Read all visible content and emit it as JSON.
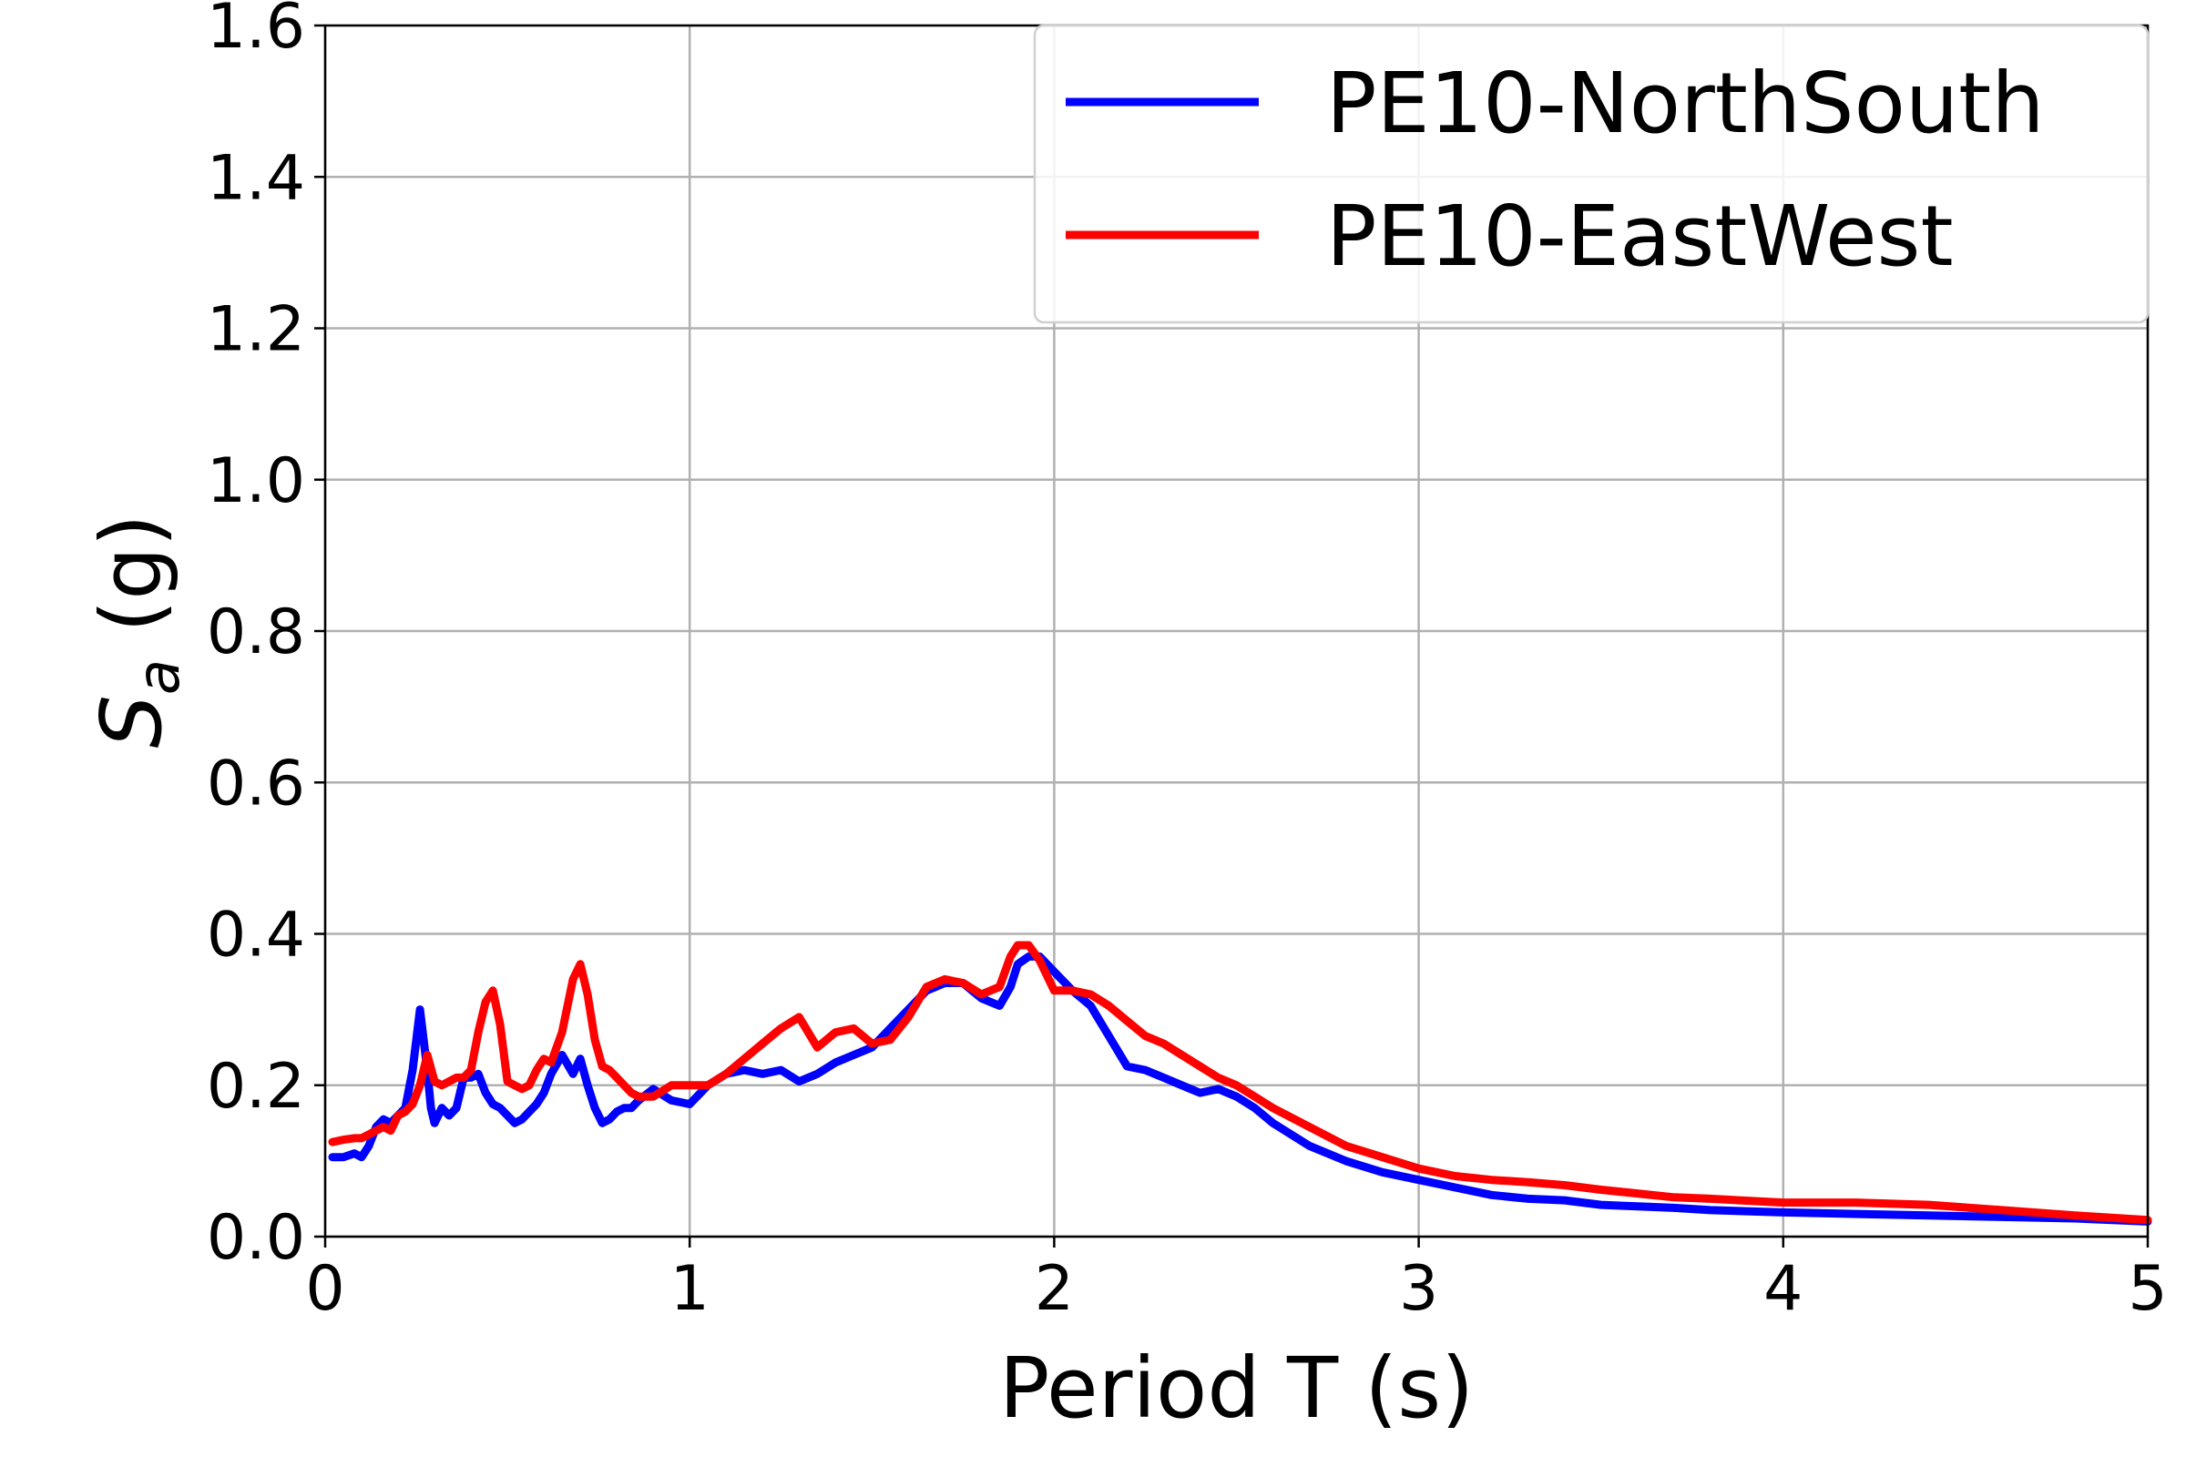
{
  "chart_data": {
    "type": "line",
    "title": "",
    "xlabel": "Period T (s)",
    "ylabel": {
      "base": "S",
      "subscript": "a",
      "suffix": " (g)"
    },
    "xlim": [
      0,
      5
    ],
    "ylim": [
      0,
      1.6
    ],
    "xticks": [
      0,
      1,
      2,
      3,
      4,
      5
    ],
    "xtick_labels": [
      "0",
      "1",
      "2",
      "3",
      "4",
      "5"
    ],
    "yticks": [
      0,
      0.2,
      0.4,
      0.6,
      0.8,
      1.0,
      1.2,
      1.4,
      1.6
    ],
    "ytick_labels": [
      "0.0",
      "0.2",
      "0.4",
      "0.6",
      "0.8",
      "1.0",
      "1.2",
      "1.4",
      "1.6"
    ],
    "grid": true,
    "legend_position": "top-right",
    "series": [
      {
        "name": "PE10-NorthSouth",
        "color": "#0000ff",
        "x": [
          0.02,
          0.05,
          0.08,
          0.1,
          0.12,
          0.14,
          0.16,
          0.18,
          0.2,
          0.22,
          0.24,
          0.26,
          0.28,
          0.29,
          0.3,
          0.32,
          0.34,
          0.36,
          0.38,
          0.4,
          0.42,
          0.44,
          0.46,
          0.48,
          0.5,
          0.52,
          0.54,
          0.56,
          0.58,
          0.6,
          0.62,
          0.65,
          0.68,
          0.7,
          0.72,
          0.74,
          0.76,
          0.78,
          0.8,
          0.82,
          0.84,
          0.86,
          0.9,
          0.95,
          1.0,
          1.05,
          1.1,
          1.15,
          1.2,
          1.25,
          1.3,
          1.35,
          1.4,
          1.45,
          1.5,
          1.55,
          1.6,
          1.65,
          1.7,
          1.75,
          1.8,
          1.85,
          1.88,
          1.9,
          1.93,
          1.96,
          2.0,
          2.05,
          2.1,
          2.15,
          2.2,
          2.25,
          2.3,
          2.35,
          2.4,
          2.45,
          2.5,
          2.55,
          2.6,
          2.7,
          2.8,
          2.9,
          3.0,
          3.1,
          3.2,
          3.3,
          3.4,
          3.5,
          3.6,
          3.7,
          3.8,
          4.0,
          4.2,
          4.4,
          4.6,
          4.8,
          5.0
        ],
        "values": [
          0.105,
          0.105,
          0.11,
          0.105,
          0.12,
          0.145,
          0.155,
          0.15,
          0.16,
          0.17,
          0.22,
          0.3,
          0.22,
          0.17,
          0.15,
          0.17,
          0.16,
          0.17,
          0.21,
          0.21,
          0.215,
          0.19,
          0.175,
          0.17,
          0.16,
          0.15,
          0.155,
          0.165,
          0.175,
          0.19,
          0.215,
          0.24,
          0.215,
          0.235,
          0.2,
          0.17,
          0.15,
          0.155,
          0.165,
          0.17,
          0.17,
          0.18,
          0.195,
          0.18,
          0.175,
          0.2,
          0.215,
          0.22,
          0.215,
          0.22,
          0.205,
          0.215,
          0.23,
          0.24,
          0.25,
          0.275,
          0.3,
          0.325,
          0.335,
          0.335,
          0.315,
          0.305,
          0.33,
          0.36,
          0.37,
          0.37,
          0.35,
          0.325,
          0.305,
          0.265,
          0.225,
          0.22,
          0.21,
          0.2,
          0.19,
          0.195,
          0.185,
          0.17,
          0.15,
          0.12,
          0.1,
          0.085,
          0.075,
          0.065,
          0.055,
          0.05,
          0.048,
          0.042,
          0.04,
          0.038,
          0.035,
          0.032,
          0.03,
          0.028,
          0.026,
          0.024,
          0.02
        ]
      },
      {
        "name": "PE10-EastWest",
        "color": "#ff0000",
        "x": [
          0.02,
          0.05,
          0.08,
          0.1,
          0.12,
          0.14,
          0.16,
          0.18,
          0.2,
          0.22,
          0.24,
          0.26,
          0.28,
          0.3,
          0.32,
          0.34,
          0.36,
          0.38,
          0.4,
          0.42,
          0.44,
          0.46,
          0.48,
          0.5,
          0.52,
          0.54,
          0.56,
          0.58,
          0.6,
          0.62,
          0.65,
          0.68,
          0.7,
          0.72,
          0.74,
          0.76,
          0.78,
          0.8,
          0.82,
          0.84,
          0.86,
          0.9,
          0.95,
          1.0,
          1.05,
          1.1,
          1.15,
          1.2,
          1.25,
          1.3,
          1.35,
          1.4,
          1.45,
          1.5,
          1.55,
          1.6,
          1.65,
          1.7,
          1.75,
          1.8,
          1.85,
          1.88,
          1.9,
          1.93,
          1.96,
          2.0,
          2.05,
          2.1,
          2.15,
          2.2,
          2.25,
          2.3,
          2.35,
          2.4,
          2.45,
          2.5,
          2.55,
          2.6,
          2.7,
          2.8,
          2.9,
          3.0,
          3.1,
          3.2,
          3.3,
          3.4,
          3.5,
          3.6,
          3.7,
          3.8,
          4.0,
          4.2,
          4.4,
          4.6,
          4.8,
          5.0
        ],
        "values": [
          0.125,
          0.128,
          0.13,
          0.13,
          0.135,
          0.14,
          0.145,
          0.14,
          0.16,
          0.165,
          0.175,
          0.2,
          0.24,
          0.205,
          0.2,
          0.205,
          0.21,
          0.21,
          0.22,
          0.27,
          0.31,
          0.325,
          0.28,
          0.205,
          0.2,
          0.195,
          0.2,
          0.22,
          0.235,
          0.23,
          0.27,
          0.34,
          0.36,
          0.32,
          0.26,
          0.225,
          0.22,
          0.21,
          0.2,
          0.19,
          0.185,
          0.185,
          0.2,
          0.2,
          0.2,
          0.215,
          0.235,
          0.255,
          0.275,
          0.29,
          0.25,
          0.27,
          0.275,
          0.255,
          0.26,
          0.29,
          0.33,
          0.34,
          0.335,
          0.32,
          0.33,
          0.37,
          0.385,
          0.385,
          0.365,
          0.325,
          0.325,
          0.32,
          0.305,
          0.285,
          0.265,
          0.255,
          0.24,
          0.225,
          0.21,
          0.2,
          0.185,
          0.17,
          0.145,
          0.12,
          0.105,
          0.09,
          0.08,
          0.075,
          0.072,
          0.068,
          0.062,
          0.057,
          0.052,
          0.05,
          0.045,
          0.045,
          0.042,
          0.035,
          0.028,
          0.022
        ]
      }
    ]
  }
}
